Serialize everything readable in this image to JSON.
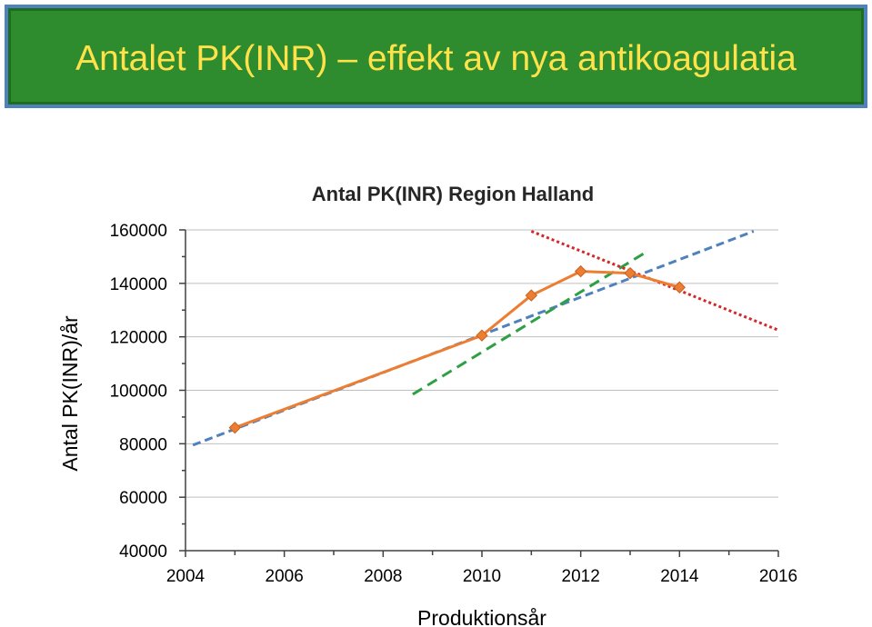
{
  "slide": {
    "title": "Antalet PK(INR) – effekt av nya antikoagulatia"
  },
  "colors": {
    "banner": "#2e8b2e",
    "banner_border": "#4f81bd",
    "title_text": "#ffe24a",
    "series": "#ed7d31",
    "trend_blue": "#4f81bd",
    "trend_green": "#2ea043",
    "trend_red": "#d62728"
  },
  "chart_data": {
    "type": "line",
    "title": "Antal PK(INR) Region Halland",
    "xlabel": "Produktionsår",
    "ylabel": "Antal PK(INR)/år",
    "xlim": [
      2004,
      2016
    ],
    "ylim": [
      40000,
      160000
    ],
    "x_ticks": [
      2004,
      2006,
      2008,
      2010,
      2012,
      2014,
      2016
    ],
    "y_ticks": [
      40000,
      60000,
      80000,
      100000,
      120000,
      140000,
      160000
    ],
    "grid": "horizontal",
    "series": [
      {
        "x": [
          2005,
          2010,
          2011,
          2012,
          2013,
          2014
        ],
        "y": [
          86000,
          120500,
          135500,
          144500,
          143800,
          138500
        ]
      }
    ],
    "trendlines": [
      {
        "style": "dashed-blue",
        "x": [
          2004.15,
          2015.5
        ],
        "y": [
          79500,
          159500
        ]
      },
      {
        "style": "dashed-green",
        "x": [
          2008.6,
          2013.35
        ],
        "y": [
          98500,
          152000
        ]
      },
      {
        "style": "dotted-red",
        "x": [
          2011,
          2016
        ],
        "y": [
          159500,
          122500
        ]
      }
    ]
  }
}
